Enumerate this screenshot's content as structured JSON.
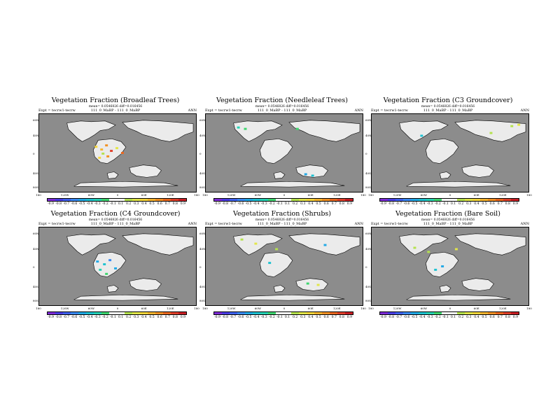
{
  "stat_line": "mean= 0.0546826 diff=0.016456",
  "diff_label": "111_0_MaBP - 111_0_MaBP",
  "expt_label": "Expt = tecrw1-tecrw",
  "period": "ANN",
  "lat_labels": [
    "60N",
    "40N",
    "0",
    "40S",
    "80S"
  ],
  "lon_labels": [
    "180",
    "120W",
    "60W",
    "0",
    "60E",
    "120E",
    "180"
  ],
  "colorbar": {
    "colors": [
      "#7e2bd8",
      "#4b3ee6",
      "#3f62f0",
      "#3a8af4",
      "#22a9e6",
      "#1ec2d1",
      "#27d3b5",
      "#3fd66f",
      "#ffffff",
      "#ffffff",
      "#b5e24e",
      "#e2e64a",
      "#f5d63b",
      "#f7b52f",
      "#f29124",
      "#ea681f",
      "#e0402a",
      "#c81e24"
    ],
    "labels": [
      "-0.9",
      "-0.8",
      "-0.7",
      "-0.6",
      "-0.5",
      "-0.4",
      "-0.3",
      "-0.2",
      "-0.1",
      "0.1",
      "0.2",
      "0.3",
      "0.4",
      "0.5",
      "0.6",
      "0.7",
      "0.8",
      "0.9"
    ]
  },
  "panels": [
    {
      "title": "Vegetation Fraction (Broadleaf Trees)"
    },
    {
      "title": "Vegetation Fraction (Needleleaf Trees)"
    },
    {
      "title": "Vegetation Fraction (C3 Groundcover)"
    },
    {
      "title": "Vegetation Fraction (C4 Groundcover)"
    },
    {
      "title": "Vegetation Fraction (Shrubs)"
    },
    {
      "title": "Vegetation Fraction (Bare Soil)"
    }
  ]
}
